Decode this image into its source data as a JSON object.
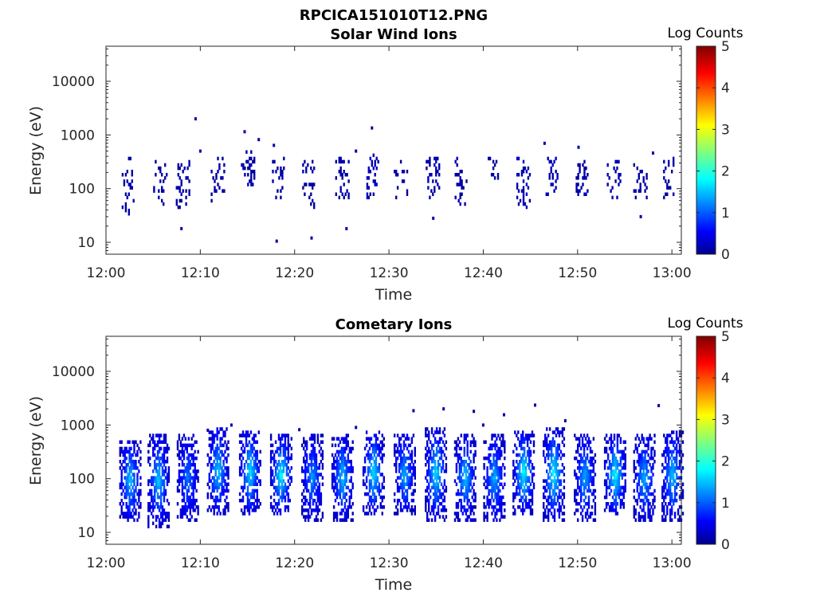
{
  "figure": {
    "filename": "RPCICA151010T12.PNG"
  },
  "chart_data": [
    {
      "type": "heatmap",
      "title": "Solar Wind Ions",
      "xlabel": "Time",
      "ylabel": "Energy (eV)",
      "x_ticks": [
        "12:00",
        "12:10",
        "12:20",
        "12:30",
        "12:40",
        "12:50",
        "13:00"
      ],
      "xlim_minutes": [
        0,
        61
      ],
      "y_scale": "log",
      "y_ticks": [
        "10",
        "100",
        "1000",
        "10000"
      ],
      "ylim": [
        6,
        45000
      ],
      "colorbar": {
        "label": "Log Counts",
        "ticks": [
          "0",
          "1",
          "2",
          "3",
          "4",
          "5"
        ],
        "range": [
          0,
          5
        ],
        "colormap": "jet"
      },
      "bursts": [
        {
          "t": 2.2,
          "e_low": 40,
          "e_high": 280,
          "level": 0.2
        },
        {
          "t": 5.7,
          "e_low": 60,
          "e_high": 270,
          "level": 0.2
        },
        {
          "t": 8.1,
          "e_low": 50,
          "e_high": 250,
          "level": 0.2
        },
        {
          "t": 11.8,
          "e_low": 70,
          "e_high": 300,
          "level": 0.15
        },
        {
          "t": 15.0,
          "e_low": 120,
          "e_high": 400,
          "level": 0.2
        },
        {
          "t": 18.3,
          "e_low": 80,
          "e_high": 300,
          "level": 0.2
        },
        {
          "t": 21.5,
          "e_low": 50,
          "e_high": 250,
          "level": 0.15
        },
        {
          "t": 25.0,
          "e_low": 60,
          "e_high": 280,
          "level": 0.2
        },
        {
          "t": 28.3,
          "e_low": 80,
          "e_high": 350,
          "level": 0.3
        },
        {
          "t": 31.2,
          "e_low": 80,
          "e_high": 250,
          "level": 0.15
        },
        {
          "t": 34.6,
          "e_low": 80,
          "e_high": 300,
          "level": 0.25
        },
        {
          "t": 37.5,
          "e_low": 60,
          "e_high": 300,
          "level": 0.2
        },
        {
          "t": 41.0,
          "e_low": 150,
          "e_high": 280,
          "level": 0.15
        },
        {
          "t": 44.2,
          "e_low": 50,
          "e_high": 300,
          "level": 0.35
        },
        {
          "t": 47.3,
          "e_low": 80,
          "e_high": 300,
          "level": 0.3
        },
        {
          "t": 50.5,
          "e_low": 70,
          "e_high": 250,
          "level": 0.2
        },
        {
          "t": 53.8,
          "e_low": 60,
          "e_high": 250,
          "level": 0.25
        },
        {
          "t": 56.6,
          "e_low": 70,
          "e_high": 250,
          "level": 0.15
        },
        {
          "t": 59.6,
          "e_low": 80,
          "e_high": 300,
          "level": 0.15
        }
      ],
      "isolated_points": [
        {
          "t": 9.5,
          "e": 2000
        },
        {
          "t": 14.7,
          "e": 1150
        },
        {
          "t": 16.2,
          "e": 820
        },
        {
          "t": 17.8,
          "e": 640
        },
        {
          "t": 28.2,
          "e": 1350
        },
        {
          "t": 25.5,
          "e": 18
        },
        {
          "t": 18.1,
          "e": 10.5
        },
        {
          "t": 21.8,
          "e": 12
        },
        {
          "t": 34.7,
          "e": 28
        },
        {
          "t": 56.7,
          "e": 30
        },
        {
          "t": 8.0,
          "e": 18
        },
        {
          "t": 46.5,
          "e": 700
        },
        {
          "t": 50.1,
          "e": 590
        },
        {
          "t": 58.0,
          "e": 460
        },
        {
          "t": 10.0,
          "e": 500
        },
        {
          "t": 26.5,
          "e": 500
        }
      ]
    },
    {
      "type": "heatmap",
      "title": "Cometary Ions",
      "xlabel": "Time",
      "ylabel": "Energy (eV)",
      "x_ticks": [
        "12:00",
        "12:10",
        "12:20",
        "12:30",
        "12:40",
        "12:50",
        "13:00"
      ],
      "xlim_minutes": [
        0,
        61
      ],
      "y_scale": "log",
      "y_ticks": [
        "10",
        "100",
        "1000",
        "10000"
      ],
      "ylim": [
        6,
        45000
      ],
      "colorbar": {
        "label": "Log Counts",
        "ticks": [
          "0",
          "1",
          "2",
          "3",
          "4",
          "5"
        ],
        "range": [
          0,
          5
        ],
        "colormap": "jet"
      },
      "bursts": [
        {
          "t": 2.5,
          "e_low": 20,
          "e_high": 400,
          "level": 1.0
        },
        {
          "t": 5.5,
          "e_low": 15,
          "e_high": 500,
          "level": 1.0
        },
        {
          "t": 8.6,
          "e_low": 18,
          "e_high": 500,
          "level": 0.7
        },
        {
          "t": 11.8,
          "e_low": 25,
          "e_high": 700,
          "level": 1.0
        },
        {
          "t": 15.2,
          "e_low": 25,
          "e_high": 600,
          "level": 1.1
        },
        {
          "t": 18.5,
          "e_low": 25,
          "e_high": 500,
          "level": 1.2
        },
        {
          "t": 21.8,
          "e_low": 20,
          "e_high": 500,
          "level": 0.8
        },
        {
          "t": 25.0,
          "e_low": 20,
          "e_high": 500,
          "level": 1.0
        },
        {
          "t": 28.3,
          "e_low": 25,
          "e_high": 600,
          "level": 1.1
        },
        {
          "t": 31.6,
          "e_low": 25,
          "e_high": 500,
          "level": 0.9
        },
        {
          "t": 34.9,
          "e_low": 20,
          "e_high": 700,
          "level": 1.1
        },
        {
          "t": 38.0,
          "e_low": 20,
          "e_high": 500,
          "level": 1.0
        },
        {
          "t": 41.1,
          "e_low": 20,
          "e_high": 500,
          "level": 0.9
        },
        {
          "t": 44.2,
          "e_low": 25,
          "e_high": 600,
          "level": 1.2
        },
        {
          "t": 47.4,
          "e_low": 20,
          "e_high": 700,
          "level": 1.2
        },
        {
          "t": 50.7,
          "e_low": 20,
          "e_high": 500,
          "level": 0.9
        },
        {
          "t": 53.9,
          "e_low": 25,
          "e_high": 500,
          "level": 1.2
        },
        {
          "t": 57.0,
          "e_low": 20,
          "e_high": 500,
          "level": 0.9
        },
        {
          "t": 60.0,
          "e_low": 20,
          "e_high": 600,
          "level": 1.0
        }
      ],
      "isolated_points": [
        {
          "t": 32.6,
          "e": 1850
        },
        {
          "t": 35.8,
          "e": 2000
        },
        {
          "t": 39.0,
          "e": 1800
        },
        {
          "t": 42.2,
          "e": 1550
        },
        {
          "t": 45.5,
          "e": 2350
        },
        {
          "t": 58.6,
          "e": 2300
        },
        {
          "t": 13.3,
          "e": 1000
        },
        {
          "t": 10.8,
          "e": 800
        },
        {
          "t": 26.5,
          "e": 900
        },
        {
          "t": 40.0,
          "e": 1000
        },
        {
          "t": 48.7,
          "e": 1200
        },
        {
          "t": 20.5,
          "e": 820
        }
      ]
    }
  ]
}
